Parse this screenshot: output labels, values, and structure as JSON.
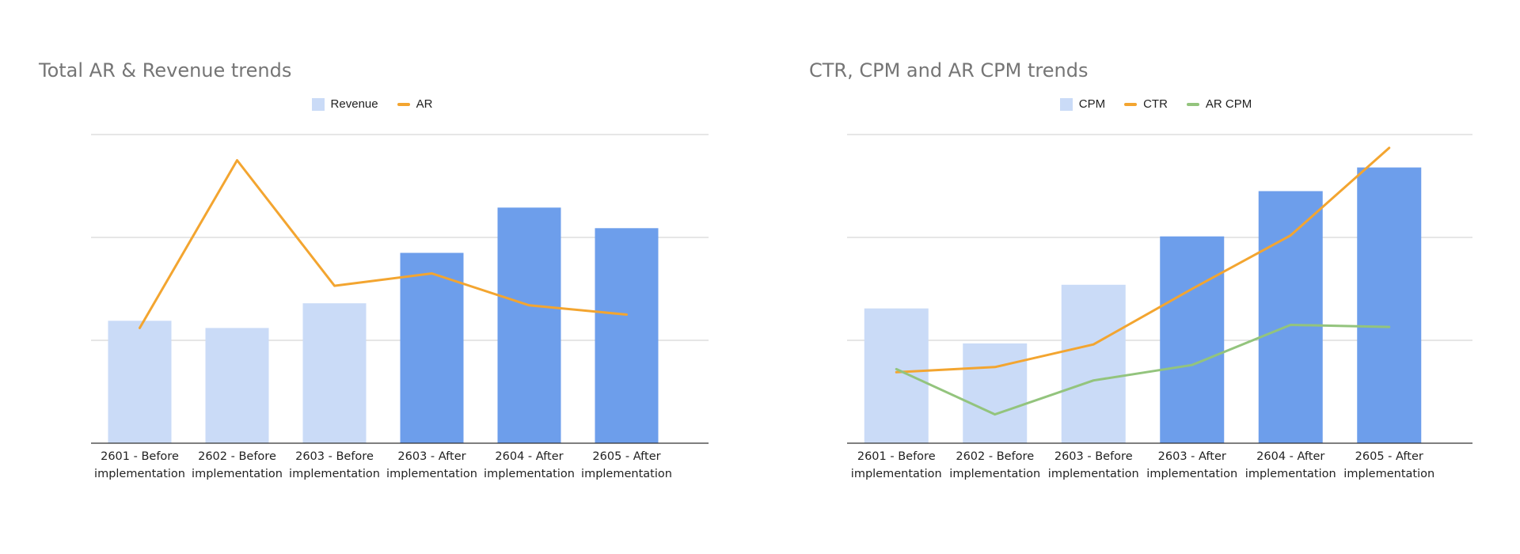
{
  "chart_data": [
    {
      "type": "bar",
      "title": "Total AR & Revenue trends",
      "categories": [
        [
          "2601 - Before",
          "implementation"
        ],
        [
          "2602 - Before",
          "implementation"
        ],
        [
          "2603 - Before",
          "implementation"
        ],
        [
          "2603 - After",
          "implementation"
        ],
        [
          "2604 - After",
          "implementation"
        ],
        [
          "2605 - After",
          "implementation"
        ]
      ],
      "bar_series": {
        "name": "Revenue",
        "values": [
          1.19,
          1.12,
          1.36,
          1.85,
          2.29,
          2.09
        ]
      },
      "line_series": [
        {
          "name": "AR",
          "color": "#f3a530",
          "values": [
            1.12,
            2.75,
            1.53,
            1.65,
            1.34,
            1.25
          ]
        }
      ],
      "ylim": [
        0,
        3
      ],
      "gridlines": [
        1,
        2,
        3
      ],
      "y_tick_labels": false,
      "legend_position": "top-center",
      "colors": {
        "before": "#cadbf7",
        "after": "#6d9eeb",
        "grid": "#cccccc",
        "axis": "#333333"
      },
      "highlight_from_index": 3
    },
    {
      "type": "bar",
      "title": "CTR, CPM and AR CPM trends",
      "categories": [
        [
          "2601 - Before",
          "implementation"
        ],
        [
          "2602 - Before",
          "implementation"
        ],
        [
          "2603 - Before",
          "implementation"
        ],
        [
          "2603 - After",
          "implementation"
        ],
        [
          "2604 - After",
          "implementation"
        ],
        [
          "2605 - After",
          "implementation"
        ]
      ],
      "bar_series": {
        "name": "CPM",
        "values": [
          1.31,
          0.97,
          1.54,
          2.01,
          2.45,
          2.68
        ]
      },
      "line_series": [
        {
          "name": "CTR",
          "color": "#f3a530",
          "values": [
            0.69,
            0.74,
            0.96,
            1.5,
            2.02,
            2.87
          ]
        },
        {
          "name": "AR CPM",
          "color": "#93c47d",
          "values": [
            0.72,
            0.28,
            0.61,
            0.76,
            1.15,
            1.13
          ]
        }
      ],
      "ylim": [
        0,
        3
      ],
      "gridlines": [
        1,
        2,
        3
      ],
      "y_tick_labels": false,
      "legend_position": "top-center",
      "colors": {
        "before": "#cadbf7",
        "after": "#6d9eeb",
        "grid": "#cccccc",
        "axis": "#333333"
      },
      "highlight_from_index": 3
    }
  ]
}
